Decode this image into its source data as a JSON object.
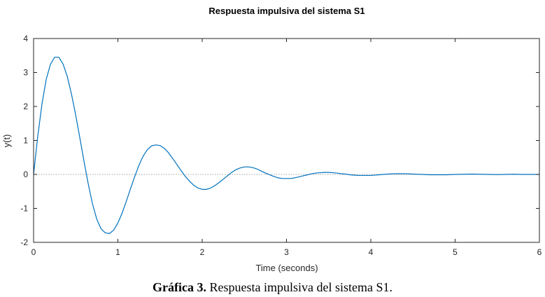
{
  "figure": {
    "caption_bold": "Gráfica 3.",
    "caption_text": " Respuesta impulsiva del sistema S1."
  },
  "chart_data": {
    "type": "line",
    "title": "Respuesta impulsiva del sistema S1",
    "xlabel": "Time (seconds)",
    "ylabel": "y(t)",
    "xlim": [
      0,
      6
    ],
    "ylim": [
      -2,
      4
    ],
    "xticks": [
      "0",
      "1",
      "2",
      "3",
      "4",
      "5",
      "6"
    ],
    "yticks": [
      "-2",
      "-1",
      "0",
      "1",
      "2",
      "3",
      "4"
    ],
    "grid": false,
    "zero_line": true,
    "line_color": "#0072BD",
    "series": [
      {
        "x": [
          0,
          0.05,
          0.1,
          0.15,
          0.2,
          0.25,
          0.3,
          0.35,
          0.4,
          0.45,
          0.5,
          0.55,
          0.6,
          0.65,
          0.7,
          0.75,
          0.8,
          0.85,
          0.9,
          0.95,
          1.0,
          1.05,
          1.1,
          1.15,
          1.2,
          1.25,
          1.3,
          1.35,
          1.4,
          1.45,
          1.5,
          1.55,
          1.6,
          1.65,
          1.7,
          1.75,
          1.8,
          1.85,
          1.9,
          1.95,
          2.0,
          2.05,
          2.1,
          2.15,
          2.2,
          2.25,
          2.3,
          2.35,
          2.4,
          2.45,
          2.5,
          2.55,
          2.6,
          2.65,
          2.7,
          2.75,
          2.8,
          2.85,
          2.9,
          2.95,
          3.0,
          3.05,
          3.1,
          3.15,
          3.2,
          3.25,
          3.3,
          3.35,
          3.4,
          3.45,
          3.5,
          3.55,
          3.6,
          3.65,
          3.7,
          3.75,
          3.8,
          3.85,
          3.9,
          3.95,
          4.0,
          4.1,
          4.2,
          4.3,
          4.4,
          4.5,
          4.6,
          4.7,
          4.8,
          4.9,
          5.0,
          5.1,
          5.2,
          5.3,
          5.4,
          5.5,
          5.6,
          5.7,
          5.8,
          5.9,
          6.0
        ],
        "y": [
          0,
          1.13,
          2.08,
          2.8,
          3.24,
          3.45,
          3.45,
          3.25,
          2.88,
          2.36,
          1.74,
          1.06,
          0.36,
          -0.3,
          -0.88,
          -1.32,
          -1.6,
          -1.72,
          -1.74,
          -1.64,
          -1.43,
          -1.14,
          -0.79,
          -0.42,
          -0.06,
          0.27,
          0.54,
          0.73,
          0.84,
          0.87,
          0.85,
          0.77,
          0.64,
          0.47,
          0.29,
          0.11,
          -0.06,
          -0.2,
          -0.32,
          -0.4,
          -0.44,
          -0.44,
          -0.4,
          -0.33,
          -0.24,
          -0.14,
          -0.04,
          0.06,
          0.14,
          0.19,
          0.22,
          0.22,
          0.2,
          0.16,
          0.1,
          0.04,
          -0.01,
          -0.06,
          -0.1,
          -0.12,
          -0.12,
          -0.12,
          -0.1,
          -0.07,
          -0.04,
          -0.01,
          0.02,
          0.04,
          0.05,
          0.06,
          0.06,
          0.05,
          0.04,
          0.02,
          0.01,
          -0.01,
          -0.02,
          -0.03,
          -0.03,
          -0.03,
          -0.03,
          -0.01,
          0.01,
          0.02,
          0.02,
          0.01,
          0.0,
          -0.01,
          -0.01,
          -0.01,
          0.0,
          0.005,
          0.01,
          0.005,
          0.0,
          -0.005,
          0.0,
          0.005,
          0.0,
          0.0,
          0.0
        ]
      }
    ]
  }
}
